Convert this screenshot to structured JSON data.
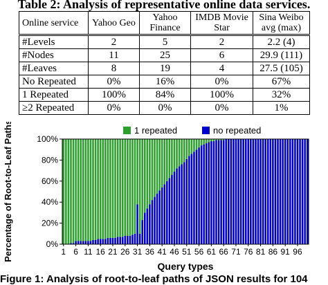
{
  "table": {
    "title": "Table 2: Analysis of representative online data services.",
    "header": [
      "Online service",
      "Yahoo Geo",
      "Yahoo Finance",
      "IMDB Movie Star",
      "Sina Weibo avg (max)"
    ],
    "rows": [
      [
        "#Levels",
        "2",
        "5",
        "2",
        "2.2 (4)"
      ],
      [
        "#Nodes",
        "11",
        "25",
        "6",
        "29.9 (111)"
      ],
      [
        "#Leaves",
        "8",
        "19",
        "4",
        "27.5 (105)"
      ],
      [
        "No Repeated",
        "0%",
        "16%",
        "0%",
        "67%"
      ],
      [
        "1 Repeated",
        "100%",
        "84%",
        "100%",
        "32%"
      ],
      [
        "≥2 Repeated",
        "0%",
        "0%",
        "0%",
        "1%"
      ]
    ]
  },
  "chart_data": {
    "type": "bar",
    "stacked": true,
    "xlabel": "Query types",
    "ylabel": "Percentage of Root-to-Leaf Paths",
    "ylim": [
      0,
      100
    ],
    "yticks": [
      "0%",
      "20%",
      "40%",
      "60%",
      "80%",
      "100%"
    ],
    "xticks": [
      1,
      6,
      11,
      16,
      21,
      26,
      31,
      36,
      41,
      46,
      51,
      56,
      61,
      66,
      71,
      76,
      81,
      86,
      91,
      96
    ],
    "legend_position": "top",
    "x": [
      1,
      2,
      3,
      4,
      5,
      6,
      7,
      8,
      9,
      10,
      11,
      12,
      13,
      14,
      15,
      16,
      17,
      18,
      19,
      20,
      21,
      22,
      23,
      24,
      25,
      26,
      27,
      28,
      29,
      30,
      31,
      32,
      33,
      34,
      35,
      36,
      37,
      38,
      39,
      40,
      41,
      42,
      43,
      44,
      45,
      46,
      47,
      48,
      49,
      50,
      51,
      52,
      53,
      54,
      55,
      56,
      57,
      58,
      59,
      60,
      61,
      62,
      63,
      64,
      65,
      66,
      67,
      68,
      69,
      70,
      71,
      72,
      73,
      74,
      75,
      76,
      77,
      78,
      79,
      80,
      81,
      82,
      83,
      84,
      85,
      86,
      87,
      88,
      89,
      90,
      91,
      92,
      93,
      94,
      95,
      96,
      97,
      98,
      99,
      100
    ],
    "series": [
      {
        "name": "1 repeated",
        "color": "#2ca02c",
        "values": [
          100,
          100,
          100,
          99,
          99,
          97,
          97,
          97,
          97,
          97,
          97,
          97,
          96,
          96,
          95,
          95,
          95,
          95,
          94,
          94,
          94,
          94,
          93,
          93,
          93,
          92,
          92,
          92,
          91,
          90,
          62,
          90,
          77,
          70,
          66,
          62,
          58,
          55,
          52,
          49,
          46,
          43,
          40,
          37,
          34,
          31,
          28,
          26,
          24,
          22,
          19,
          16,
          14,
          12,
          10,
          8,
          6,
          5,
          4,
          3,
          2,
          2,
          1,
          1,
          1,
          1,
          0,
          0,
          0,
          0,
          0,
          0,
          0,
          0,
          0,
          0,
          0,
          0,
          0,
          0,
          0,
          0,
          0,
          0,
          0,
          0,
          0,
          0,
          0,
          0,
          0,
          0,
          0,
          0,
          0,
          0,
          0,
          0,
          0,
          0
        ]
      },
      {
        "name": "no repeated",
        "color": "#0000cc",
        "values": [
          0,
          0,
          0,
          1,
          1,
          3,
          3,
          3,
          3,
          3,
          3,
          3,
          4,
          4,
          5,
          5,
          5,
          5,
          6,
          6,
          6,
          6,
          7,
          7,
          7,
          8,
          8,
          8,
          9,
          10,
          38,
          10,
          23,
          30,
          34,
          38,
          42,
          45,
          48,
          51,
          54,
          57,
          60,
          63,
          66,
          69,
          72,
          74,
          76,
          78,
          81,
          84,
          86,
          88,
          90,
          92,
          94,
          95,
          96,
          97,
          98,
          98,
          99,
          99,
          99,
          99,
          100,
          100,
          100,
          100,
          100,
          100,
          100,
          100,
          100,
          100,
          100,
          100,
          100,
          100,
          100,
          100,
          100,
          100,
          100,
          100,
          100,
          100,
          100,
          100,
          100,
          100,
          100,
          100,
          100,
          100,
          100,
          100,
          100,
          100
        ]
      }
    ]
  },
  "caption": {
    "text": "Figure 1: Analysis of root-to-leaf paths of JSON results for 104"
  }
}
